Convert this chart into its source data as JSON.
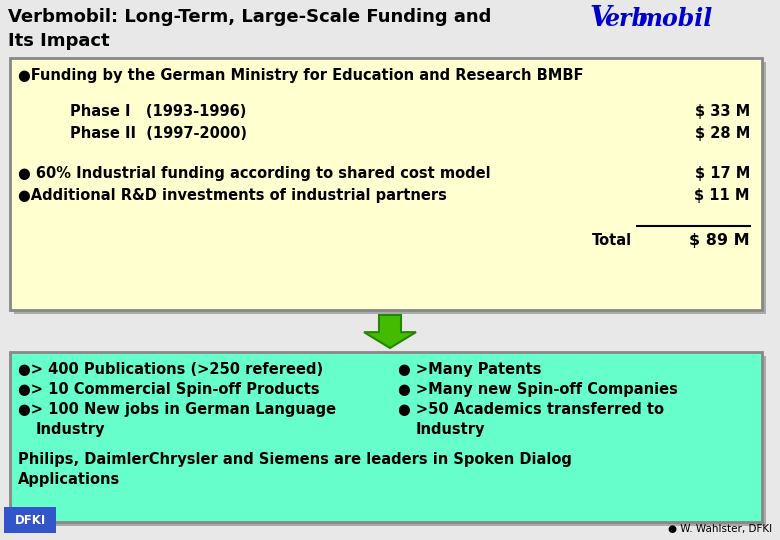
{
  "title_line1": "Verbmobil: Long-Term, Large-Scale Funding and",
  "title_line2": "Its Impact",
  "bg_color": "#e8e8e8",
  "top_box_bg": "#ffffd0",
  "top_box_border": "#888888",
  "bottom_box_bg": "#66ffcc",
  "bottom_box_border": "#888888",
  "shadow_color": "#aaaaaa",
  "arrow_fill": "#44bb00",
  "arrow_edge": "#228800",
  "top_box": {
    "line1": "●Funding by the German Ministry for Education and Research BMBF",
    "phase1_left": "Phase I   (1993-1996)",
    "phase1_right": "$ 33 M",
    "phase2_left": "Phase II  (1997-2000)",
    "phase2_right": "$ 28 M",
    "line4_left": "● 60% Industrial funding according to shared cost model",
    "line4_right": "$ 17 M",
    "line5_left": "●Additional R&D investments of industrial partners",
    "line5_right": "$ 11 M",
    "total_label": "Total",
    "total_value": "$ 89 M"
  },
  "bottom_box": {
    "c1r1": "●> 400 Publications (>250 refereed)",
    "c1r2": "●> 10 Commercial Spin-off Products",
    "c1r3": "●> 100 New jobs in German Language",
    "c1r4": "      Industry",
    "c2r1": "● >Many Patents",
    "c2r2": "● >Many new Spin-off Companies",
    "c2r3": "● >50 Academics transferred to",
    "c2r4": "       Industry",
    "extra1": "Philips, DaimlerChrysler and Siemens are leaders in Spoken Dialog",
    "extra2": "Applications"
  },
  "footer": "● W. Wahlster, DFKI",
  "dfki_color": "#3355cc"
}
